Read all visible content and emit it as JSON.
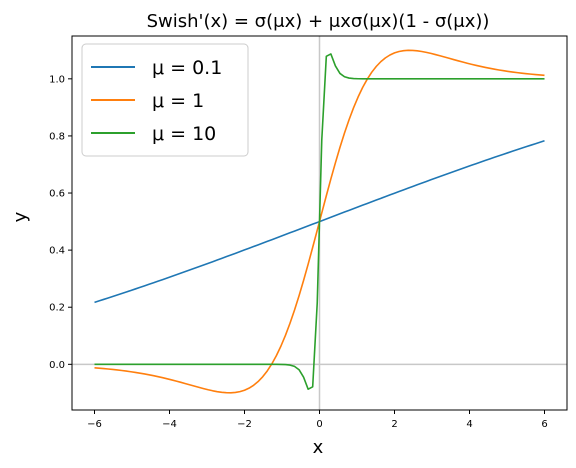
{
  "chart_data": {
    "type": "line",
    "title": "Swish'(x) = σ(μx) + μxσ(μx)(1 - σ(μx))",
    "xlabel": "x",
    "ylabel": "y",
    "xlim": [
      -6.6,
      6.6
    ],
    "ylim": [
      -0.16,
      1.15
    ],
    "xticks": [
      -6,
      -4,
      -2,
      0,
      2,
      4,
      6
    ],
    "xtick_labels": [
      "−6",
      "−4",
      "−2",
      "0",
      "2",
      "4",
      "6"
    ],
    "yticks": [
      0.0,
      0.2,
      0.4,
      0.6,
      0.8,
      1.0
    ],
    "ytick_labels": [
      "0.0",
      "0.2",
      "0.4",
      "0.6",
      "0.8",
      "1.0"
    ],
    "x_range": [
      -6,
      6
    ],
    "samples": 100,
    "reference_lines": {
      "x": 0,
      "y": 0,
      "color": "#c8c8c8"
    },
    "grid": false,
    "legend_position": "upper-left",
    "series": [
      {
        "name": "μ = 0.1",
        "mu": 0.1,
        "color": "#1f77b4"
      },
      {
        "name": "μ = 1",
        "mu": 1,
        "color": "#ff7f0e"
      },
      {
        "name": "μ = 10",
        "mu": 10,
        "color": "#2ca02c"
      }
    ]
  }
}
